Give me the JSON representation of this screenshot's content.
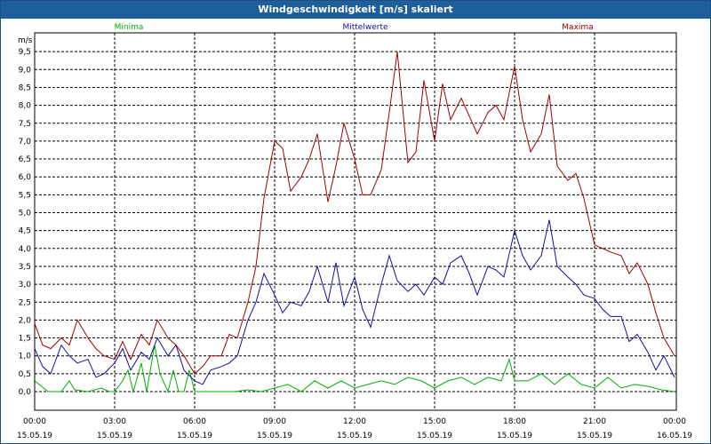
{
  "window": {
    "title": "Windgeschwindigkeit [m/s] skaliert"
  },
  "chart_data": {
    "type": "line",
    "title": "Windgeschwindigkeit [m/s] skaliert",
    "ylabel": "m/s",
    "ylim": [
      -0.5,
      9.75
    ],
    "xlim": [
      0,
      24
    ],
    "grid": true,
    "yticks": [
      "0,0",
      "0,5",
      "1,0",
      "1,5",
      "2,0",
      "2,5",
      "3,0",
      "3,5",
      "4,0",
      "4,5",
      "5,0",
      "5,5",
      "6,0",
      "6,5",
      "7,0",
      "7,5",
      "8,0",
      "8,5",
      "9,0",
      "9,5"
    ],
    "ytick_values": [
      0,
      0.5,
      1,
      1.5,
      2,
      2.5,
      3,
      3.5,
      4,
      4.5,
      5,
      5.5,
      6,
      6.5,
      7,
      7.5,
      8,
      8.5,
      9,
      9.5
    ],
    "xticks": [
      {
        "x": 0,
        "time": "00:00",
        "date": "15.05.19"
      },
      {
        "x": 3,
        "time": "03:00",
        "date": "15.05.19"
      },
      {
        "x": 6,
        "time": "06:00",
        "date": "15.05.19"
      },
      {
        "x": 9,
        "time": "09:00",
        "date": "15.05.19"
      },
      {
        "x": 12,
        "time": "12:00",
        "date": "15.05.19"
      },
      {
        "x": 15,
        "time": "15:00",
        "date": "15.05.19"
      },
      {
        "x": 18,
        "time": "18:00",
        "date": "15.05.19"
      },
      {
        "x": 21,
        "time": "21:00",
        "date": "15.05.19"
      },
      {
        "x": 24,
        "time": "00:00",
        "date": "16.05.19"
      }
    ],
    "series": [
      {
        "name": "Minima",
        "color": "#00b000",
        "x": [
          0,
          0.5,
          1,
          1.3,
          1.5,
          2,
          2.5,
          2.8,
          3,
          3.3,
          3.5,
          3.7,
          4,
          4.2,
          4.5,
          4.7,
          5,
          5.2,
          5.4,
          5.6,
          5.8,
          6,
          6.5,
          7,
          7.5,
          8,
          8.5,
          9,
          9.5,
          10,
          10.5,
          11,
          11.5,
          12,
          12.5,
          13,
          13.5,
          14,
          14.5,
          15,
          15.5,
          16,
          16.5,
          17,
          17.5,
          17.8,
          18,
          18.5,
          19,
          19.5,
          20,
          20.5,
          21,
          21.5,
          22,
          22.5,
          23,
          23.5,
          24
        ],
        "values": [
          0.3,
          0,
          0,
          0.3,
          0.05,
          0,
          0.1,
          0,
          0,
          0.3,
          0.6,
          0,
          0.8,
          0,
          1.3,
          0.5,
          0,
          0.6,
          0,
          0,
          0.6,
          0,
          0,
          0,
          0,
          0.05,
          0,
          0.1,
          0.2,
          0,
          0.3,
          0.1,
          0.3,
          0.1,
          0.2,
          0.3,
          0.2,
          0.4,
          0.3,
          0.1,
          0.3,
          0.4,
          0.2,
          0.4,
          0.3,
          0.9,
          0.3,
          0.3,
          0.5,
          0.2,
          0.5,
          0.2,
          0.1,
          0.4,
          0.1,
          0.2,
          0.15,
          0.05,
          0
        ]
      },
      {
        "name": "Mittelwerte",
        "color": "#1010a0",
        "x": [
          0,
          0.3,
          0.6,
          1,
          1.3,
          1.6,
          2,
          2.3,
          2.6,
          3,
          3.3,
          3.6,
          4,
          4.3,
          4.6,
          5,
          5.3,
          5.6,
          6,
          6.3,
          6.6,
          7,
          7.3,
          7.6,
          8,
          8.3,
          8.6,
          9,
          9.3,
          9.6,
          10,
          10.3,
          10.6,
          11,
          11.3,
          11.6,
          12,
          12.3,
          12.6,
          13,
          13.3,
          13.6,
          14,
          14.3,
          14.6,
          15,
          15.3,
          15.6,
          16,
          16.3,
          16.6,
          17,
          17.3,
          17.6,
          18,
          18.3,
          18.6,
          19,
          19.3,
          19.6,
          20,
          20.3,
          20.6,
          21,
          21.3,
          21.6,
          22,
          22.3,
          22.6,
          23,
          23.3,
          23.6,
          24
        ],
        "values": [
          1.2,
          0.7,
          0.5,
          1.3,
          1.0,
          0.8,
          0.9,
          0.4,
          0.5,
          0.8,
          1.2,
          0.6,
          1.1,
          0.9,
          1.5,
          1.0,
          1.3,
          0.6,
          0.3,
          0.2,
          0.6,
          0.7,
          0.8,
          1.0,
          2.0,
          2.5,
          3.3,
          2.7,
          2.2,
          2.5,
          2.4,
          2.8,
          3.5,
          2.5,
          3.6,
          2.4,
          3.2,
          2.3,
          1.8,
          3.0,
          3.8,
          3.1,
          2.8,
          3.0,
          2.7,
          3.2,
          3.0,
          3.6,
          3.8,
          3.3,
          2.7,
          3.5,
          3.4,
          3.2,
          4.5,
          3.8,
          3.4,
          3.8,
          4.8,
          3.5,
          3.2,
          3.0,
          2.7,
          2.6,
          2.3,
          2.1,
          2.1,
          1.4,
          1.6,
          1.1,
          0.6,
          1.0,
          0.4
        ]
      },
      {
        "name": "Maxima",
        "color": "#a00000",
        "x": [
          0,
          0.3,
          0.6,
          1,
          1.3,
          1.6,
          2,
          2.3,
          2.6,
          3,
          3.3,
          3.6,
          4,
          4.3,
          4.6,
          5,
          5.3,
          5.6,
          6,
          6.3,
          6.6,
          7,
          7.3,
          7.6,
          8,
          8.3,
          8.6,
          9,
          9.3,
          9.6,
          10,
          10.3,
          10.6,
          11,
          11.3,
          11.6,
          12,
          12.3,
          12.6,
          13,
          13.3,
          13.6,
          14,
          14.3,
          14.6,
          15,
          15.3,
          15.6,
          16,
          16.3,
          16.6,
          17,
          17.3,
          17.6,
          18,
          18.3,
          18.6,
          19,
          19.3,
          19.6,
          20,
          20.3,
          20.6,
          21,
          21.3,
          21.6,
          22,
          22.3,
          22.6,
          23,
          23.3,
          23.6,
          24
        ],
        "values": [
          1.9,
          1.3,
          1.2,
          1.5,
          1.3,
          2.0,
          1.5,
          1.2,
          1.0,
          0.9,
          1.4,
          0.9,
          1.6,
          1.3,
          2.0,
          1.5,
          1.3,
          1.0,
          0.5,
          0.7,
          1.0,
          1.0,
          1.6,
          1.5,
          2.5,
          3.5,
          5.4,
          7.0,
          6.8,
          5.6,
          6.0,
          6.5,
          7.2,
          5.3,
          6.3,
          7.5,
          6.5,
          5.5,
          5.5,
          6.2,
          7.8,
          9.5,
          6.4,
          6.7,
          8.7,
          7.0,
          8.6,
          7.6,
          8.2,
          7.7,
          7.2,
          7.8,
          8.0,
          7.6,
          9.1,
          7.6,
          6.7,
          7.2,
          8.3,
          6.3,
          5.9,
          6.1,
          5.4,
          4.1,
          4.0,
          3.9,
          3.8,
          3.3,
          3.6,
          3.0,
          2.2,
          1.5,
          1.0
        ]
      }
    ]
  }
}
